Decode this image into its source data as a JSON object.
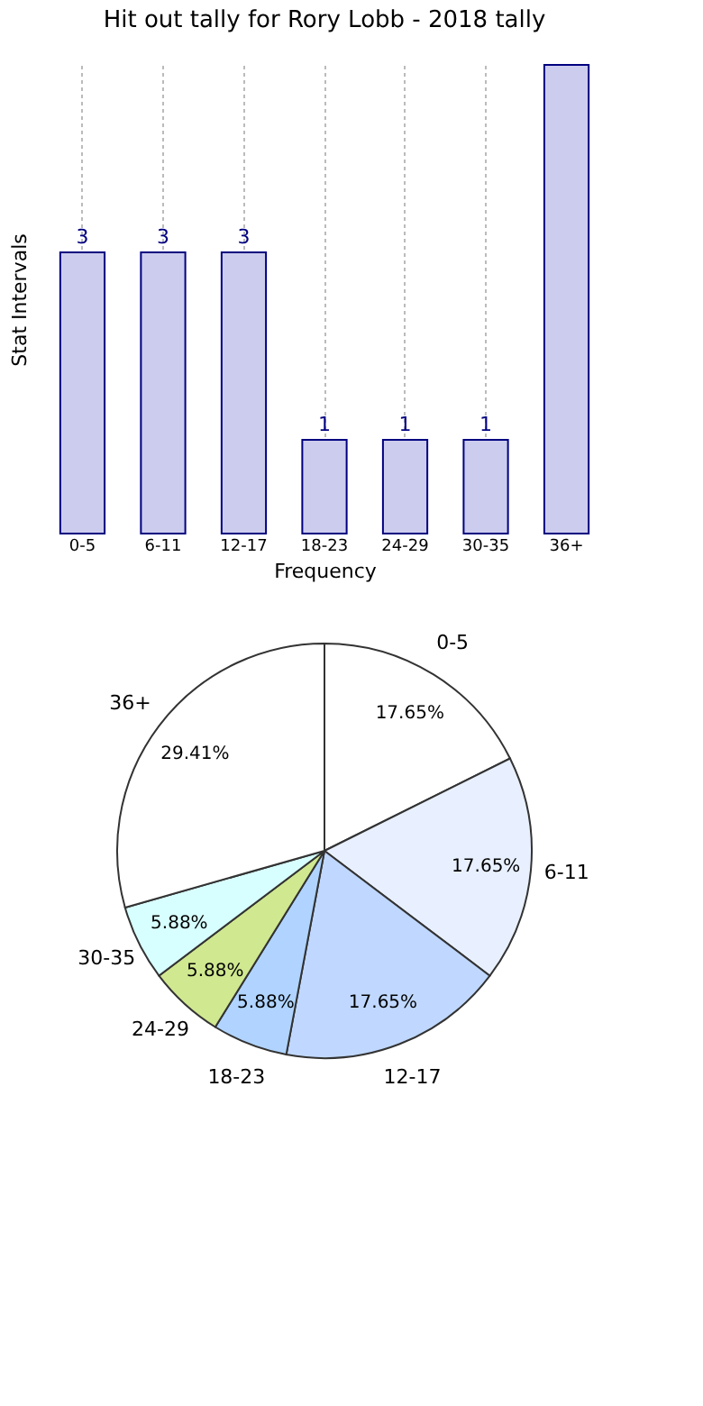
{
  "chart_data": [
    {
      "type": "bar",
      "title": "Hit out tally for Rory Lobb - 2018 tally",
      "xlabel": "Frequency",
      "ylabel": "Stat Intervals",
      "categories": [
        "0-5",
        "6-11",
        "12-17",
        "18-23",
        "24-29",
        "30-35",
        "36+"
      ],
      "values": [
        3,
        3,
        3,
        1,
        1,
        1,
        5
      ],
      "value_labels": [
        "3",
        "3",
        "3",
        "1",
        "1",
        "1",
        null
      ],
      "color": "#ccccee",
      "grid": "x",
      "tick_labels": "x"
    },
    {
      "type": "pie",
      "categories": [
        "0-5",
        "6-11",
        "12-17",
        "18-23",
        "24-29",
        "30-35",
        "36+"
      ],
      "values": [
        17.65,
        17.65,
        17.65,
        5.88,
        5.88,
        5.88,
        29.41
      ],
      "value_labels": [
        "17.65%",
        "17.65%",
        "17.65%",
        "5.88%",
        "5.88%",
        "5.88%",
        "29.41%"
      ],
      "colors": [
        "#ffffff",
        "#e8f0ff",
        "#c0d8ff",
        "#b0d4ff",
        "#d0e890",
        "#d8ffff",
        "#ffffff"
      ]
    }
  ]
}
